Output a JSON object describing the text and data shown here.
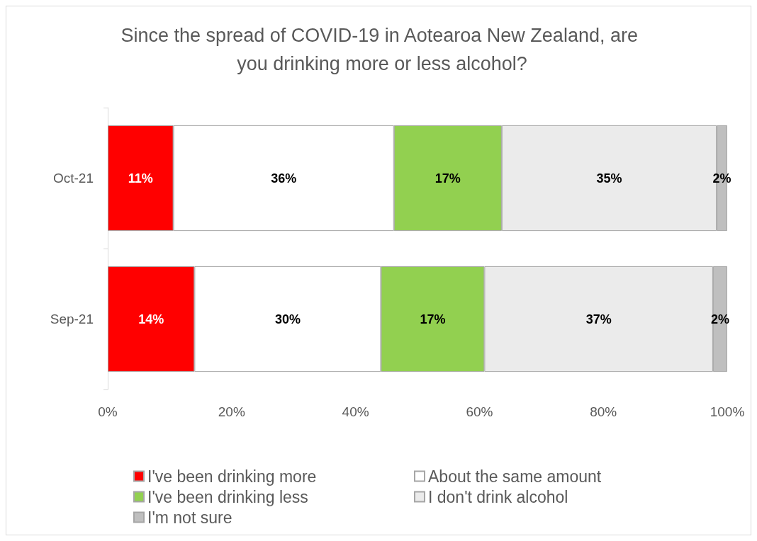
{
  "chart_data": {
    "type": "bar",
    "orientation": "horizontal",
    "stacked": true,
    "title": "Since the spread of COVID-19 in Aotearoa New Zealand, are you drinking more or less alcohol?",
    "categories": [
      "Oct-21",
      "Sep-21"
    ],
    "series": [
      {
        "name": "I've been drinking more",
        "color": "#ff0000",
        "values": [
          10.6,
          14.0
        ],
        "value_labels": [
          "11%",
          "14%"
        ]
      },
      {
        "name": "About the same amount",
        "color": "#ffffff",
        "values": [
          35.6,
          30.1
        ],
        "value_labels": [
          "36%",
          "30%"
        ]
      },
      {
        "name": "I've been drinking less",
        "color": "#92d050",
        "values": [
          17.4,
          16.7
        ],
        "value_labels": [
          "17%",
          "17%"
        ]
      },
      {
        "name": "I don't drink alcohol",
        "color": "#ebebeb",
        "values": [
          34.7,
          36.9
        ],
        "value_labels": [
          "35%",
          "37%"
        ]
      },
      {
        "name": "I'm not sure",
        "color": "#bfbfbf",
        "values": [
          1.7,
          2.3
        ],
        "value_labels": [
          "2%",
          "2%"
        ]
      }
    ],
    "xlim": [
      0,
      100
    ],
    "xticks": [
      {
        "value": 0,
        "label": "0%"
      },
      {
        "value": 20,
        "label": "20%"
      },
      {
        "value": 40,
        "label": "40%"
      },
      {
        "value": 60,
        "label": "60%"
      },
      {
        "value": 80,
        "label": "80%"
      },
      {
        "value": 100,
        "label": "100%"
      }
    ],
    "grid": false,
    "legend": "bottom"
  }
}
